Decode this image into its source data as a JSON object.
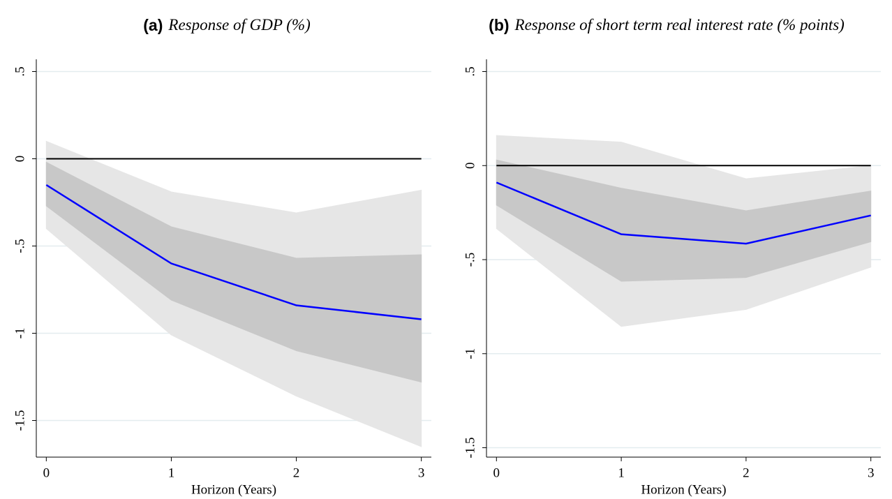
{
  "chart_data": [
    {
      "type": "line",
      "label": "(a)",
      "title": "Response of GDP (%)",
      "xlabel": "Horizon (Years)",
      "x": [
        0,
        1,
        2,
        3
      ],
      "xlim": [
        -0.08,
        3.08
      ],
      "xticks": [
        0,
        1,
        2,
        3
      ],
      "ylim": [
        -1.71,
        0.57
      ],
      "yticks": [
        {
          "value": 0.5,
          "label": ".5"
        },
        0,
        {
          "value": -0.5,
          "label": "-.5"
        },
        -1,
        {
          "value": -1.5,
          "label": "-1.5"
        }
      ],
      "grid": true,
      "reference_line": 0,
      "reference_color": "#000000",
      "bands": [
        {
          "color": "#e6e6e6",
          "upper": [
            0.1,
            -0.19,
            -0.31,
            -0.18
          ],
          "lower": [
            -0.4,
            -1.01,
            -1.36,
            -1.65
          ]
        },
        {
          "color": "#c8c8c8",
          "upper": [
            -0.02,
            -0.39,
            -0.57,
            -0.55
          ],
          "lower": [
            -0.27,
            -0.81,
            -1.1,
            -1.28
          ]
        }
      ],
      "series": [
        {
          "color": "#0000ff",
          "values": [
            -0.15,
            -0.6,
            -0.84,
            -0.92
          ]
        }
      ]
    },
    {
      "type": "line",
      "label": "(b)",
      "title": "Response of short term real interest rate (% points)",
      "xlabel": "Horizon (Years)",
      "x": [
        0,
        1,
        2,
        3
      ],
      "xlim": [
        -0.08,
        3.08
      ],
      "xticks": [
        0,
        1,
        2,
        3
      ],
      "ylim": [
        -1.55,
        0.565
      ],
      "yticks": [
        {
          "value": 0.5,
          "label": ".5"
        },
        0,
        {
          "value": -0.5,
          "label": "-.5"
        },
        -1,
        {
          "value": -1.5,
          "label": "-1.5"
        }
      ],
      "grid": true,
      "reference_line": 0,
      "reference_color": "#000000",
      "bands": [
        {
          "color": "#e6e6e6",
          "upper": [
            0.16,
            0.125,
            -0.07,
            0.0
          ],
          "lower": [
            -0.335,
            -0.855,
            -0.765,
            -0.54
          ]
        },
        {
          "color": "#c8c8c8",
          "upper": [
            0.03,
            -0.12,
            -0.24,
            -0.135
          ],
          "lower": [
            -0.21,
            -0.615,
            -0.595,
            -0.405
          ]
        }
      ],
      "series": [
        {
          "color": "#0000ff",
          "values": [
            -0.09,
            -0.365,
            -0.415,
            -0.265
          ]
        }
      ]
    }
  ]
}
